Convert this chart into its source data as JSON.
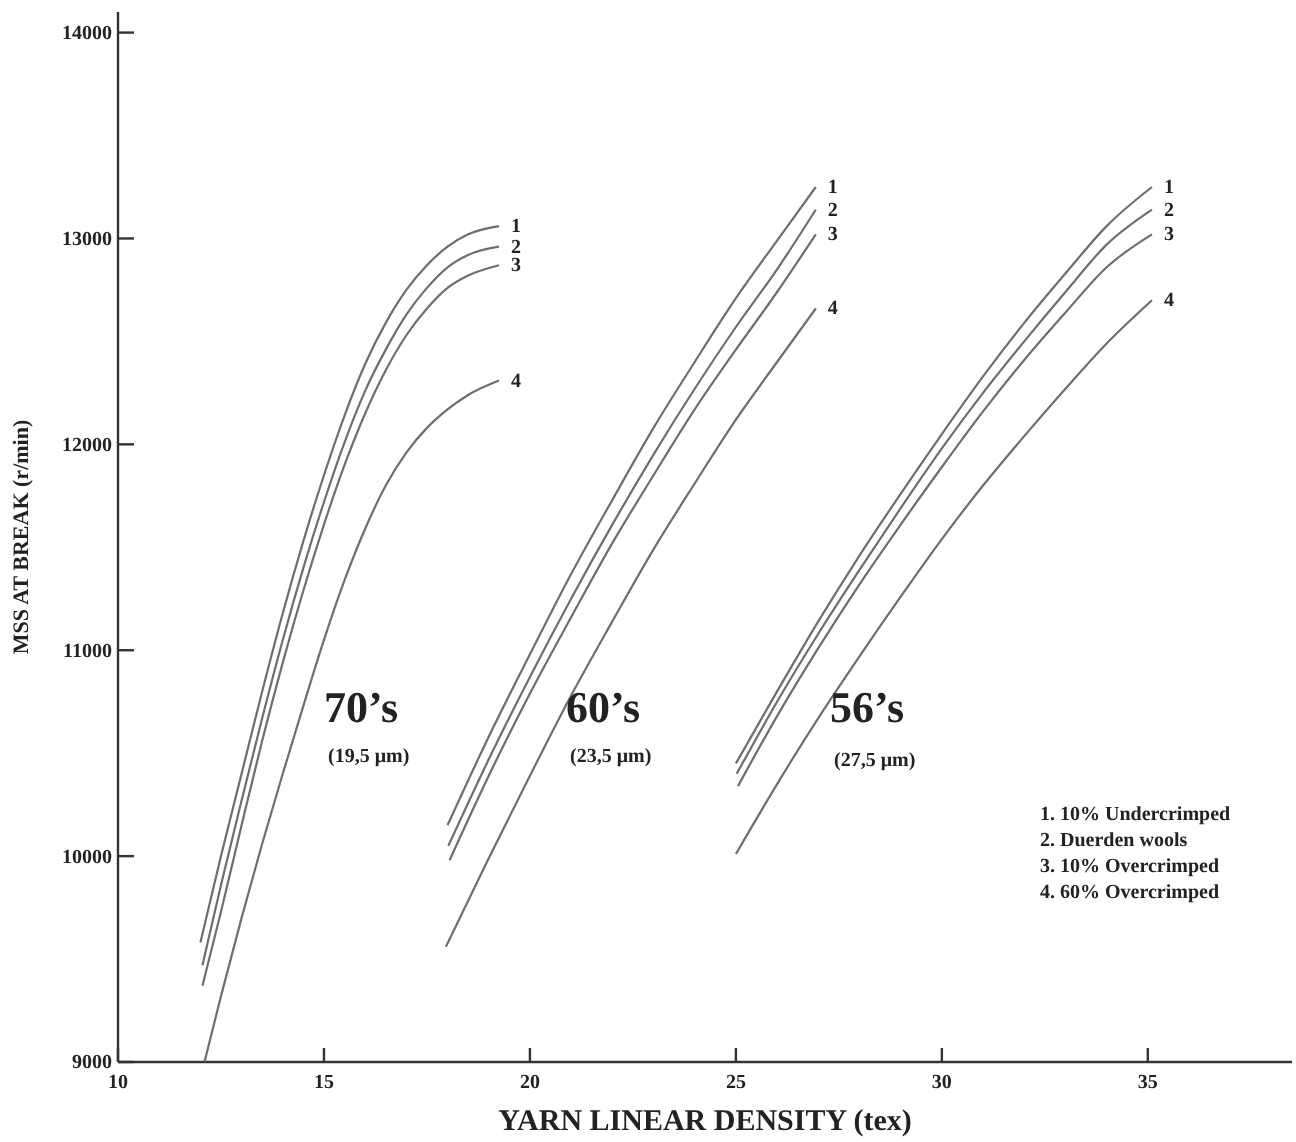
{
  "chart_data": {
    "type": "line",
    "xlabel": "YARN LINEAR DENSITY (tex)",
    "ylabel": "MSS AT BREAK (r/min)",
    "xlim": [
      10,
      38.5
    ],
    "xticks": [
      10,
      15,
      20,
      25,
      30,
      35
    ],
    "ylim": [
      9000,
      14100
    ],
    "yticks": [
      9000,
      10000,
      11000,
      12000,
      13000,
      14000
    ],
    "grid": false,
    "marker": "none",
    "line_style": "solid",
    "series": [
      {
        "name": "1",
        "color": "#6e6e6e",
        "x": [
          12.0,
          12.5,
          13,
          13.5,
          14,
          14.5,
          15,
          15.5,
          16,
          16.5,
          17,
          17.5,
          18,
          18.5,
          19.25
        ],
        "values": [
          9580,
          10000,
          10400,
          10800,
          11180,
          11530,
          11850,
          12140,
          12390,
          12590,
          12750,
          12870,
          12960,
          13020,
          13060
        ]
      },
      {
        "name": "2",
        "color": "#6e6e6e",
        "x": [
          12.05,
          12.5,
          13,
          13.5,
          14,
          14.5,
          15,
          15.5,
          16,
          16.5,
          17,
          17.5,
          18,
          18.5,
          19.25
        ],
        "values": [
          9470,
          9860,
          10270,
          10670,
          11050,
          11400,
          11720,
          12010,
          12260,
          12460,
          12630,
          12760,
          12860,
          12920,
          12960
        ]
      },
      {
        "name": "3",
        "color": "#6e6e6e",
        "x": [
          12.05,
          12.5,
          13,
          13.5,
          14,
          14.5,
          15,
          15.5,
          16,
          16.5,
          17,
          17.5,
          18,
          18.5,
          19.25
        ],
        "values": [
          9370,
          9730,
          10150,
          10560,
          10940,
          11290,
          11610,
          11900,
          12150,
          12360,
          12530,
          12660,
          12760,
          12820,
          12870
        ]
      },
      {
        "name": "4",
        "color": "#6e6e6e",
        "x": [
          12.1,
          12.5,
          13,
          13.5,
          14,
          14.5,
          15,
          15.5,
          16,
          16.5,
          17,
          17.5,
          18,
          18.5,
          19.25
        ],
        "values": [
          9000,
          9320,
          9700,
          10060,
          10400,
          10730,
          11050,
          11340,
          11590,
          11800,
          11960,
          12080,
          12170,
          12240,
          12310
        ]
      },
      {
        "name": "1",
        "color": "#6e6e6e",
        "x": [
          18,
          19,
          20,
          21,
          22,
          23,
          24,
          25,
          26,
          26.94
        ],
        "values": [
          10150,
          10580,
          10980,
          11370,
          11730,
          12080,
          12400,
          12710,
          12990,
          13250
        ]
      },
      {
        "name": "2",
        "color": "#6e6e6e",
        "x": [
          18.02,
          19,
          20,
          21,
          22,
          23,
          24,
          25,
          26,
          26.94
        ],
        "values": [
          10050,
          10470,
          10870,
          11250,
          11610,
          11950,
          12270,
          12570,
          12850,
          13140
        ]
      },
      {
        "name": "3",
        "color": "#6e6e6e",
        "x": [
          18.05,
          19,
          20,
          21,
          22,
          23,
          24,
          25,
          26,
          26.94
        ],
        "values": [
          9980,
          10390,
          10790,
          11160,
          11520,
          11850,
          12170,
          12460,
          12740,
          13020
        ]
      },
      {
        "name": "4",
        "color": "#6e6e6e",
        "x": [
          17.96,
          19,
          20,
          21,
          22,
          23,
          24,
          25,
          26,
          26.94
        ],
        "values": [
          9560,
          9990,
          10390,
          10780,
          11140,
          11490,
          11810,
          12120,
          12400,
          12660
        ]
      },
      {
        "name": "1",
        "color": "#6e6e6e",
        "x": [
          25,
          26,
          27,
          28,
          29,
          30,
          31,
          32,
          33,
          34,
          35.1
        ],
        "values": [
          10450,
          10800,
          11140,
          11460,
          11760,
          12050,
          12330,
          12590,
          12830,
          13060,
          13250
        ]
      },
      {
        "name": "2",
        "color": "#6e6e6e",
        "x": [
          25.02,
          26,
          27,
          28,
          29,
          30,
          31,
          32,
          33,
          34,
          35.1
        ],
        "values": [
          10400,
          10750,
          11080,
          11390,
          11690,
          11980,
          12250,
          12500,
          12740,
          12970,
          13140
        ]
      },
      {
        "name": "3",
        "color": "#6e6e6e",
        "x": [
          25.05,
          26,
          27,
          28,
          29,
          30,
          31,
          32,
          33,
          34,
          35.1
        ],
        "values": [
          10340,
          10680,
          11010,
          11320,
          11610,
          11890,
          12160,
          12410,
          12640,
          12860,
          13020
        ]
      },
      {
        "name": "4",
        "color": "#6e6e6e",
        "x": [
          25,
          26,
          27,
          28,
          29,
          30,
          31,
          32,
          33,
          34,
          35.1
        ],
        "values": [
          10010,
          10350,
          10670,
          10970,
          11260,
          11540,
          11800,
          12040,
          12270,
          12490,
          12700
        ]
      }
    ],
    "annotations": [
      "70’s",
      "(19,5 μm)",
      "60’s",
      "(23,5 μm)",
      "56’s",
      "(27,5 μm)",
      "1. 10% Undercrimped",
      "2. Duerden wools",
      "3. 10% Overcrimped",
      "4. 60% Overcrimped"
    ]
  }
}
